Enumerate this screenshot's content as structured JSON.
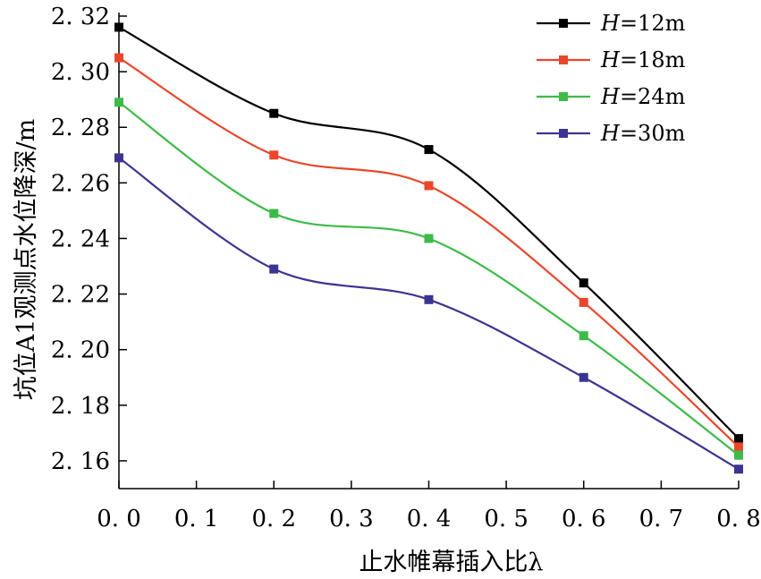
{
  "chart_data": {
    "type": "line",
    "title": "",
    "xlabel": "止水帷幕插入比λ",
    "ylabel": "坑位A1观测点水位降深/m",
    "xlim": [
      0,
      0.8
    ],
    "ylim": [
      2.15,
      2.32
    ],
    "x_ticks": [
      "0. 0",
      "0. 1",
      "0. 2",
      "0. 3",
      "0. 4",
      "0. 5",
      "0. 6",
      "0. 7",
      "0. 8"
    ],
    "x_tick_values": [
      0,
      0.1,
      0.2,
      0.3,
      0.4,
      0.5,
      0.6,
      0.7,
      0.8
    ],
    "y_ticks": [
      "2. 16",
      "2. 18",
      "2. 20",
      "2. 22",
      "2. 24",
      "2. 26",
      "2. 28",
      "2. 30",
      "2. 32"
    ],
    "y_tick_values": [
      2.16,
      2.18,
      2.2,
      2.22,
      2.24,
      2.26,
      2.28,
      2.3,
      2.32
    ],
    "grid": false,
    "legend_position": "top-right",
    "x": [
      0,
      0.2,
      0.4,
      0.6,
      0.8
    ],
    "series": [
      {
        "name_var": "H",
        "name_rest": "=12m",
        "color": "#000000",
        "values": [
          2.316,
          2.285,
          2.272,
          2.224,
          2.168
        ]
      },
      {
        "name_var": "H",
        "name_rest": "=18m",
        "color": "#e8472b",
        "values": [
          2.305,
          2.27,
          2.259,
          2.217,
          2.165
        ]
      },
      {
        "name_var": "H",
        "name_rest": "=24m",
        "color": "#3dbb49",
        "values": [
          2.289,
          2.249,
          2.24,
          2.205,
          2.162
        ]
      },
      {
        "name_var": "H",
        "name_rest": "=30m",
        "color": "#3b3591",
        "values": [
          2.269,
          2.229,
          2.218,
          2.19,
          2.157
        ]
      }
    ]
  }
}
